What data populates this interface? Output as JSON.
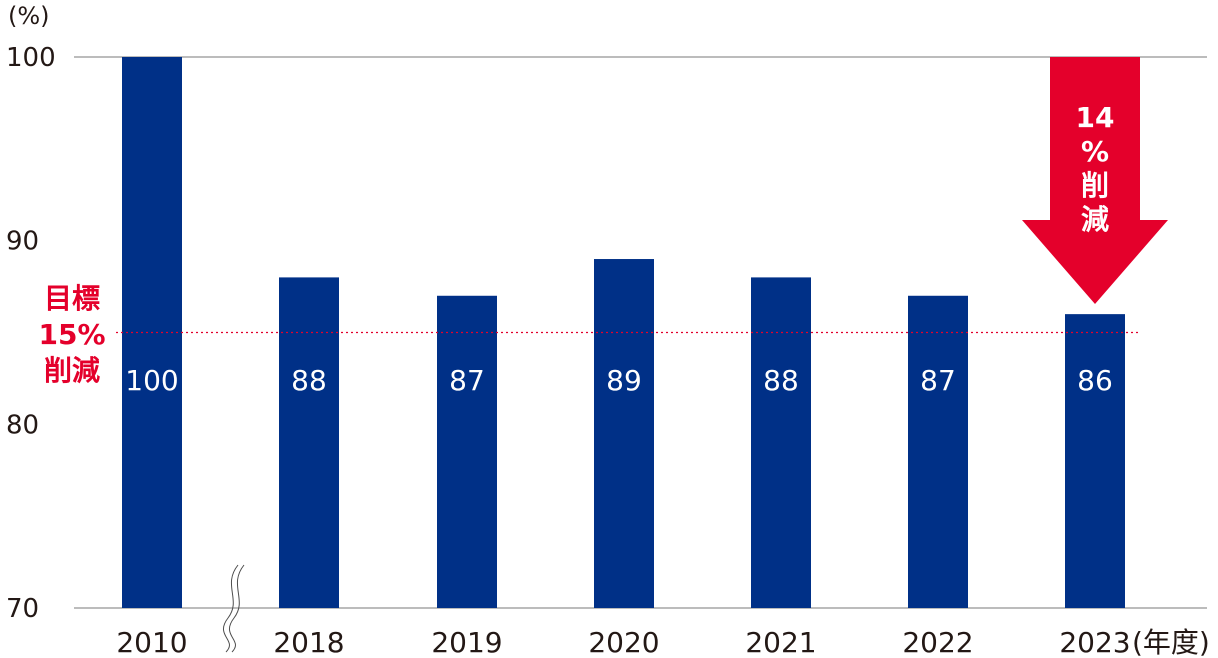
{
  "chart_data": {
    "type": "bar",
    "categories": [
      "2010",
      "2018",
      "2019",
      "2020",
      "2021",
      "2022",
      "2023"
    ],
    "values": [
      100,
      88,
      87,
      89,
      88,
      87,
      86
    ],
    "value_labels": [
      "100",
      "88",
      "87",
      "89",
      "88",
      "87",
      "86"
    ],
    "ylim": [
      70,
      100
    ],
    "y_ticks": [
      "70",
      "80",
      "90",
      "100"
    ],
    "y_unit": "(%)",
    "x_unit": "(年度)",
    "axis_break_after": "2010",
    "target": {
      "value": 85,
      "label_lines": [
        "目標",
        "15%",
        "削減"
      ]
    },
    "callout": {
      "category": "2023",
      "label_lines": [
        "14",
        "%",
        "削",
        "減"
      ]
    },
    "grid": "baseline and top line only",
    "colors": {
      "bar": "#003087",
      "accent": "#e4002b",
      "axis": "#7a7a7a"
    }
  }
}
